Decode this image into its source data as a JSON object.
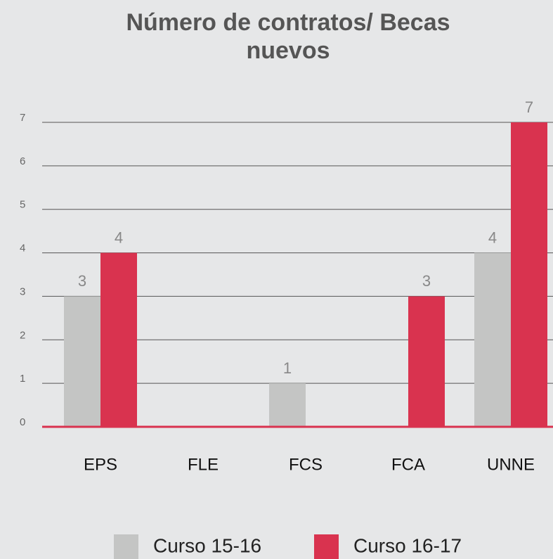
{
  "chart_data": {
    "type": "bar",
    "title": "Número de contratos/ Becas nuevos",
    "categories": [
      "EPS",
      "FLE",
      "FCS",
      "FCA",
      "UNNE"
    ],
    "series": [
      {
        "name": "Curso 15-16",
        "color": "#c4c5c4",
        "values": [
          3,
          0,
          1,
          0,
          4
        ]
      },
      {
        "name": "Curso 16-17",
        "color": "#d9334f",
        "values": [
          4,
          0,
          0,
          3,
          7
        ]
      }
    ],
    "ylim": [
      0,
      7
    ],
    "yticks": [
      0,
      1,
      2,
      3,
      4,
      5,
      6,
      7
    ],
    "grid": true
  }
}
